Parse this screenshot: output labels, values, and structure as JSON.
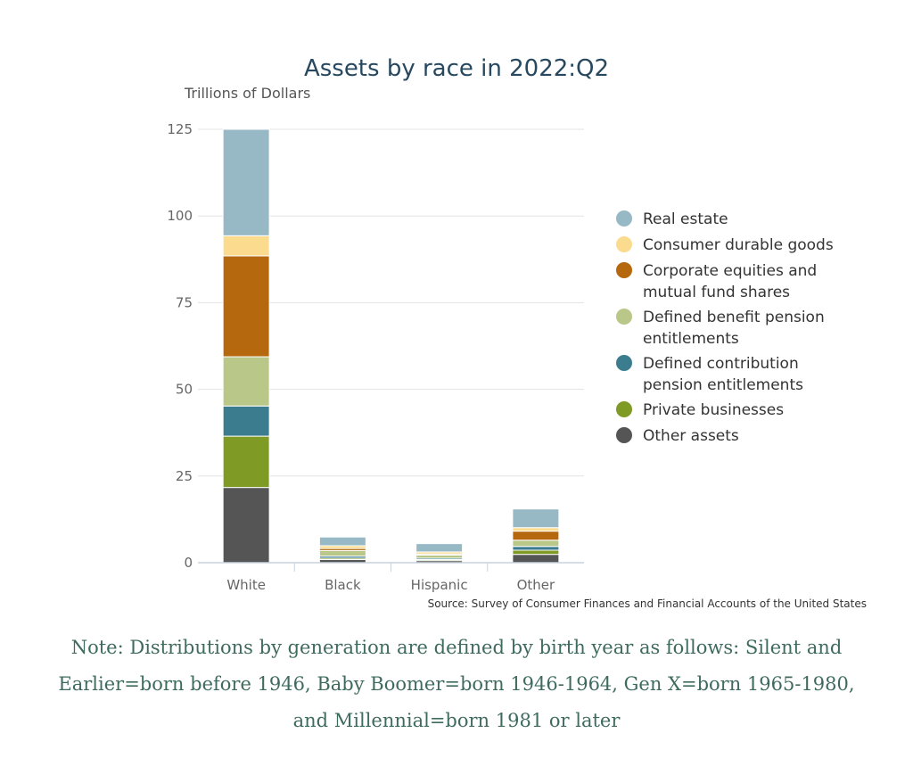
{
  "chart_data": {
    "type": "bar",
    "stacked": true,
    "title": "Assets by race in 2022:Q2",
    "ylabel": "Trillions of Dollars",
    "xlabel": "",
    "ylim": [
      0,
      125
    ],
    "yticks": [
      0,
      25,
      50,
      75,
      100,
      125
    ],
    "grid": true,
    "legend_position": "right",
    "categories": [
      "White",
      "Black",
      "Hispanic",
      "Other"
    ],
    "series": [
      {
        "name": "Other assets",
        "color": "#555555",
        "values": [
          21.7,
          0.9,
          0.6,
          2.4
        ]
      },
      {
        "name": "Private businesses",
        "color": "#7f9a25",
        "values": [
          14.8,
          0.4,
          0.3,
          1.2
        ]
      },
      {
        "name": "Defined contribution pension entitlements",
        "color": "#3b7d8e",
        "values": [
          8.7,
          0.6,
          0.4,
          1.1
        ]
      },
      {
        "name": "Defined benefit pension entitlements",
        "color": "#b9c788",
        "values": [
          14.2,
          1.6,
          0.9,
          1.8
        ]
      },
      {
        "name": "Corporate equities and mutual fund shares",
        "color": "#b5680e",
        "values": [
          29.1,
          0.6,
          0.3,
          2.6
        ]
      },
      {
        "name": "Consumer durable goods",
        "color": "#fbdc8f",
        "values": [
          5.8,
          0.8,
          0.6,
          1.0
        ]
      },
      {
        "name": "Real estate",
        "color": "#97b9c5",
        "values": [
          30.7,
          2.5,
          2.4,
          5.4
        ]
      }
    ],
    "source": "Source: Survey of Consumer Finances and Financial Accounts of the United States"
  },
  "legend": [
    {
      "lines": [
        "Real estate"
      ],
      "color": "#97b9c5"
    },
    {
      "lines": [
        "Consumer durable goods"
      ],
      "color": "#fbdc8f"
    },
    {
      "lines": [
        "Corporate equities and",
        "mutual fund shares"
      ],
      "color": "#b5680e"
    },
    {
      "lines": [
        "Defined benefit pension",
        "entitlements"
      ],
      "color": "#b9c788"
    },
    {
      "lines": [
        "Defined contribution",
        "pension entitlements"
      ],
      "color": "#3b7d8e"
    },
    {
      "lines": [
        "Private businesses"
      ],
      "color": "#7f9a25"
    },
    {
      "lines": [
        "Other assets"
      ],
      "color": "#555555"
    }
  ],
  "note": {
    "lines": [
      "Note: Distributions by generation are defined by birth year as follows: Silent and",
      "Earlier=born before 1946, Baby Boomer=born 1946-1964, Gen X=born 1965-1980,",
      "and Millennial=born 1981 or later"
    ]
  }
}
